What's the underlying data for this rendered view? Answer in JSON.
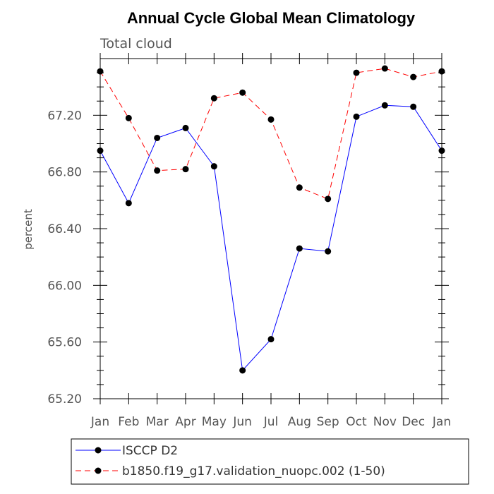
{
  "chart_data": {
    "type": "line",
    "title": "Annual Cycle Global Mean Climatology",
    "subtitle": "Total cloud",
    "xlabel": "",
    "ylabel": "percent",
    "categories": [
      "Jan",
      "Feb",
      "Mar",
      "Apr",
      "May",
      "Jun",
      "Jul",
      "Aug",
      "Sep",
      "Oct",
      "Nov",
      "Dec",
      "Jan"
    ],
    "ylim": [
      65.2,
      67.6
    ],
    "yticks": [
      "65.20",
      "65.60",
      "66.00",
      "66.40",
      "66.80",
      "67.20"
    ],
    "series": [
      {
        "name": "ISCCP D2",
        "color": "#0000ff",
        "dash": "solid",
        "values": [
          66.95,
          66.58,
          67.04,
          67.11,
          66.84,
          65.4,
          65.62,
          66.26,
          66.24,
          67.19,
          67.27,
          67.26,
          66.95
        ]
      },
      {
        "name": "b1850.f19_g17.validation_nuopc.002 (1-50)",
        "color": "#ff0000",
        "dash": "dashed",
        "values": [
          67.51,
          67.18,
          66.81,
          66.82,
          67.32,
          67.36,
          67.17,
          66.69,
          66.61,
          67.5,
          67.53,
          67.47,
          67.51
        ]
      }
    ],
    "legend_position": "bottom"
  }
}
